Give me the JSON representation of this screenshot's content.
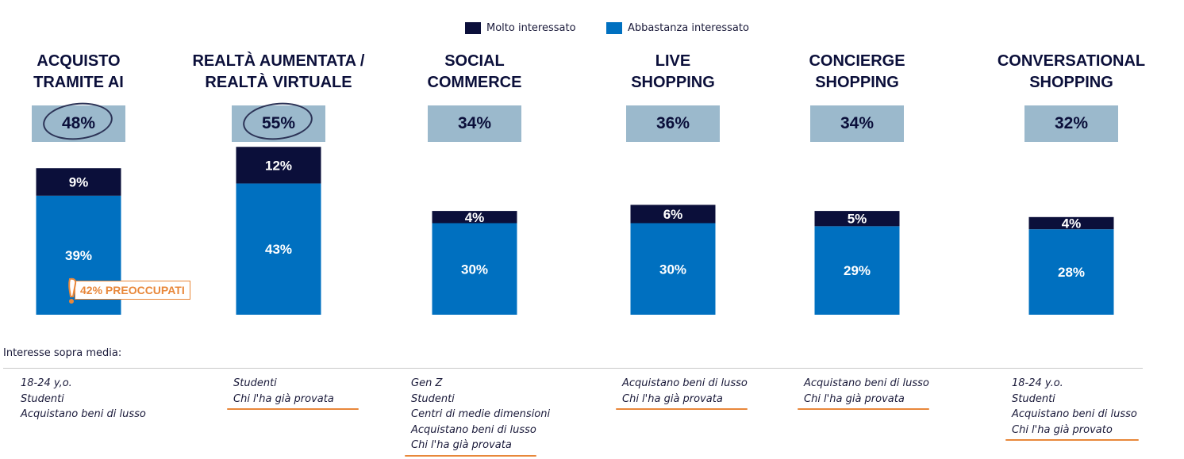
{
  "legend": [
    {
      "label": "Molto interessato",
      "color": "#0b0f3a"
    },
    {
      "label": "Abbastanza interessato",
      "color": "#0070c0"
    }
  ],
  "chart_data": {
    "type": "bar",
    "stacked": true,
    "categories": [
      "ACQUISTO TRAMITE AI",
      "REALTÀ AUMENTATA / REALTÀ VIRTUALE",
      "SOCIAL COMMERCE",
      "LIVE SHOPPING",
      "CONCIERGE SHOPPING",
      "CONVERSATIONAL SHOPPING"
    ],
    "category_lines": [
      [
        "ACQUISTO",
        "TRAMITE AI"
      ],
      [
        "REALTÀ AUMENTATA /",
        "REALTÀ VIRTUALE"
      ],
      [
        "SOCIAL",
        "COMMERCE"
      ],
      [
        "LIVE",
        "SHOPPING"
      ],
      [
        "CONCIERGE",
        "SHOPPING"
      ],
      [
        "CONVERSATIONAL",
        "SHOPPING"
      ]
    ],
    "totals": [
      "48%",
      "55%",
      "34%",
      "36%",
      "34%",
      "32%"
    ],
    "series": [
      {
        "name": "Abbastanza interessato",
        "values": [
          39,
          43,
          30,
          30,
          29,
          28
        ],
        "labels": [
          "39%",
          "43%",
          "30%",
          "30%",
          "29%",
          "28%"
        ],
        "color": "#0070c0"
      },
      {
        "name": "Molto interessato",
        "values": [
          9,
          12,
          4,
          6,
          5,
          4
        ],
        "labels": [
          "9%",
          "12%",
          "4%",
          "6%",
          "5%",
          "4%"
        ],
        "color": "#0b0f3a"
      }
    ],
    "units": "%",
    "highlighted_totals": [
      0,
      1
    ],
    "grid": false,
    "legend_position": "top-center"
  },
  "callout": {
    "label": "42% PREOCCUPATI",
    "icon": "exclamation-icon",
    "color": "#e8873a"
  },
  "segments": {
    "title": "Interesse sopra media:",
    "columns": [
      [
        "18-24 y,o.",
        "Studenti",
        "Acquistano beni di lusso"
      ],
      [
        "Studenti",
        "Chi l'ha già provata"
      ],
      [
        "Gen Z",
        "Studenti",
        "Centri di medie dimensioni",
        "Acquistano beni di lusso",
        "Chi l'ha già provata"
      ],
      [
        "Acquistano beni di lusso",
        "Chi l'ha già provata"
      ],
      [
        "Acquistano beni di lusso",
        "Chi l'ha già provata"
      ],
      [
        "18-24 y.o.",
        "Studenti",
        "Acquistano beni di lusso",
        "Chi l'ha già provato"
      ]
    ],
    "underlined_line_index": [
      null,
      1,
      4,
      1,
      1,
      3
    ]
  }
}
